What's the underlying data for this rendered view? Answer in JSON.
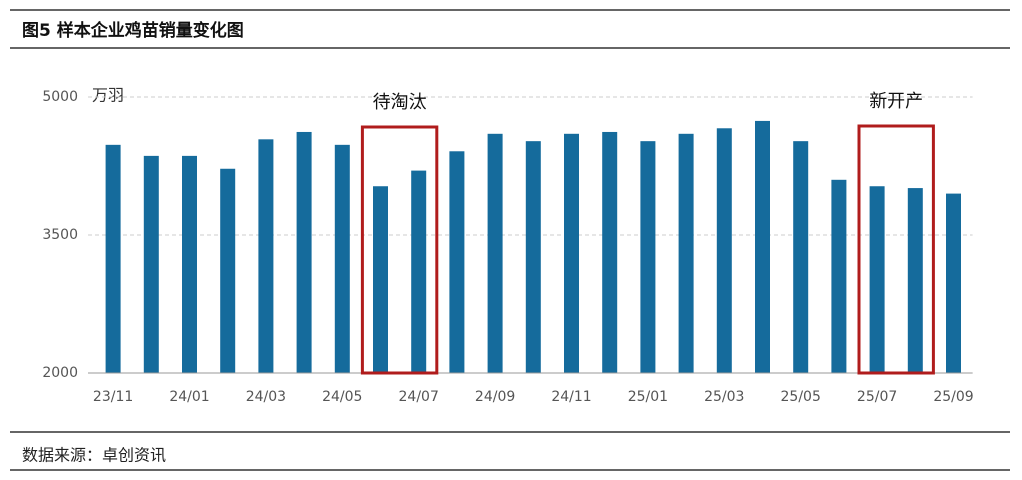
{
  "chart_data": {
    "type": "bar",
    "title": "图5 样本企业鸡苗销量变化图",
    "y_label": "万羽",
    "source": "数据来源：卓创资讯",
    "annotations": [
      "待淘汰",
      "新开产"
    ],
    "categories": [
      "23/11",
      null,
      "24/01",
      null,
      "24/03",
      null,
      "24/05",
      null,
      "24/07",
      null,
      "24/09",
      null,
      "24/11",
      null,
      "25/01",
      null,
      "25/03",
      null,
      "25/05",
      null,
      "25/07",
      null,
      "25/09"
    ],
    "values": [
      4480,
      4360,
      4360,
      4220,
      4540,
      4620,
      4480,
      4030,
      4200,
      4410,
      4600,
      4520,
      4600,
      4620,
      4520,
      4600,
      4660,
      4740,
      4520,
      4100,
      4030,
      4010,
      3950
    ],
    "color": "#156b9c",
    "ylim": [
      2000,
      5000
    ],
    "yticks": [
      2000,
      3500,
      5000
    ],
    "grid": true
  }
}
